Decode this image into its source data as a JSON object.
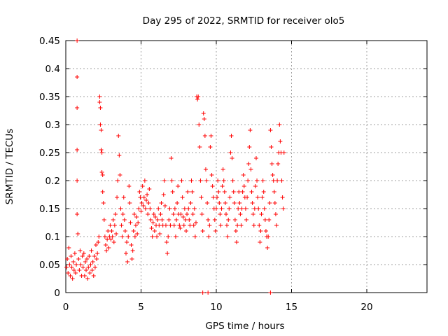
{
  "chart_data": {
    "type": "scatter",
    "title": "Day 295 of 2022, SRMTID for receiver olo5",
    "xlabel": "GPS time / hours",
    "ylabel": "SRMTID / TECUs",
    "xlim": [
      0,
      24
    ],
    "ylim": [
      0,
      0.45
    ],
    "x_ticks": [
      0,
      5,
      10,
      15,
      20
    ],
    "y_ticks": [
      0,
      0.05,
      0.1,
      0.15,
      0.2,
      0.25,
      0.3,
      0.35,
      0.4,
      0.45
    ],
    "x_tick_labels": [
      "0",
      "5",
      "10",
      "15",
      "20"
    ],
    "y_tick_labels": [
      "0",
      "0.05",
      "0.1",
      "0.15",
      "0.2",
      "0.25",
      "0.3",
      "0.35",
      "0.4",
      "0.45"
    ],
    "grid": true,
    "marker": "+",
    "color": "#ff0000",
    "series": [
      {
        "name": "SRMTID",
        "points": [
          [
            0.05,
            0.045
          ],
          [
            0.1,
            0.06
          ],
          [
            0.15,
            0.035
          ],
          [
            0.2,
            0.08
          ],
          [
            0.25,
            0.05
          ],
          [
            0.3,
            0.03
          ],
          [
            0.35,
            0.065
          ],
          [
            0.4,
            0.045
          ],
          [
            0.45,
            0.025
          ],
          [
            0.5,
            0.055
          ],
          [
            0.55,
            0.04
          ],
          [
            0.6,
            0.07
          ],
          [
            0.65,
            0.035
          ],
          [
            0.7,
            0.05
          ],
          [
            0.75,
            0.45
          ],
          [
            0.75,
            0.385
          ],
          [
            0.75,
            0.33
          ],
          [
            0.75,
            0.255
          ],
          [
            0.75,
            0.2
          ],
          [
            0.75,
            0.14
          ],
          [
            0.8,
            0.105
          ],
          [
            0.85,
            0.06
          ],
          [
            0.9,
            0.04
          ],
          [
            0.95,
            0.075
          ],
          [
            1.0,
            0.05
          ],
          [
            1.05,
            0.03
          ],
          [
            1.1,
            0.065
          ],
          [
            1.15,
            0.045
          ],
          [
            1.2,
            0.07
          ],
          [
            1.25,
            0.03
          ],
          [
            1.3,
            0.055
          ],
          [
            1.35,
            0.04
          ],
          [
            1.4,
            0.06
          ],
          [
            1.45,
            0.025
          ],
          [
            1.5,
            0.045
          ],
          [
            1.55,
            0.065
          ],
          [
            1.6,
            0.035
          ],
          [
            1.65,
            0.05
          ],
          [
            1.7,
            0.075
          ],
          [
            1.75,
            0.04
          ],
          [
            1.8,
            0.055
          ],
          [
            1.85,
            0.03
          ],
          [
            1.9,
            0.065
          ],
          [
            1.95,
            0.045
          ],
          [
            2.0,
            0.085
          ],
          [
            2.05,
            0.06
          ],
          [
            2.1,
            0.07
          ],
          [
            2.15,
            0.09
          ],
          [
            2.2,
            0.1
          ],
          [
            2.25,
            0.35
          ],
          [
            2.25,
            0.34
          ],
          [
            2.3,
            0.33
          ],
          [
            2.3,
            0.3
          ],
          [
            2.35,
            0.29
          ],
          [
            2.35,
            0.255
          ],
          [
            2.4,
            0.25
          ],
          [
            2.4,
            0.215
          ],
          [
            2.45,
            0.21
          ],
          [
            2.45,
            0.18
          ],
          [
            2.5,
            0.16
          ],
          [
            2.55,
            0.13
          ],
          [
            2.6,
            0.1
          ],
          [
            2.65,
            0.085
          ],
          [
            2.7,
            0.075
          ],
          [
            2.75,
            0.095
          ],
          [
            2.8,
            0.11
          ],
          [
            2.85,
            0.08
          ],
          [
            2.9,
            0.1
          ],
          [
            2.95,
            0.12
          ],
          [
            3.0,
            0.095
          ],
          [
            3.05,
            0.11
          ],
          [
            3.1,
            0.1
          ],
          [
            3.15,
            0.13
          ],
          [
            3.2,
            0.09
          ],
          [
            3.25,
            0.12
          ],
          [
            3.3,
            0.14
          ],
          [
            3.35,
            0.105
          ],
          [
            3.4,
            0.17
          ],
          [
            3.45,
            0.2
          ],
          [
            3.5,
            0.28
          ],
          [
            3.55,
            0.245
          ],
          [
            3.6,
            0.21
          ],
          [
            3.65,
            0.15
          ],
          [
            3.7,
            0.12
          ],
          [
            3.75,
            0.1
          ],
          [
            3.8,
            0.14
          ],
          [
            3.85,
            0.17
          ],
          [
            3.9,
            0.13
          ],
          [
            3.95,
            0.11
          ],
          [
            4.0,
            0.07
          ],
          [
            4.05,
            0.09
          ],
          [
            4.1,
            0.055
          ],
          [
            4.15,
            0.1
          ],
          [
            4.2,
            0.19
          ],
          [
            4.25,
            0.16
          ],
          [
            4.3,
            0.125
          ],
          [
            4.35,
            0.085
          ],
          [
            4.4,
            0.06
          ],
          [
            4.45,
            0.075
          ],
          [
            4.5,
            0.11
          ],
          [
            4.55,
            0.14
          ],
          [
            4.6,
            0.1
          ],
          [
            4.65,
            0.12
          ],
          [
            4.7,
            0.135
          ],
          [
            4.75,
            0.105
          ],
          [
            4.8,
            0.125
          ],
          [
            4.85,
            0.15
          ],
          [
            4.9,
            0.18
          ],
          [
            4.95,
            0.17
          ],
          [
            5.0,
            0.145
          ],
          [
            5.05,
            0.16
          ],
          [
            5.1,
            0.19
          ],
          [
            5.15,
            0.155
          ],
          [
            5.2,
            0.17
          ],
          [
            5.25,
            0.2
          ],
          [
            5.3,
            0.15
          ],
          [
            5.35,
            0.165
          ],
          [
            5.4,
            0.175
          ],
          [
            5.45,
            0.14
          ],
          [
            5.5,
            0.16
          ],
          [
            5.55,
            0.185
          ],
          [
            5.6,
            0.15
          ],
          [
            5.65,
            0.13
          ],
          [
            5.7,
            0.115
          ],
          [
            5.75,
            0.1
          ],
          [
            5.8,
            0.125
          ],
          [
            5.85,
            0.14
          ],
          [
            5.9,
            0.11
          ],
          [
            5.95,
            0.135
          ],
          [
            6.0,
            0.12
          ],
          [
            6.05,
            0.1
          ],
          [
            6.1,
            0.13
          ],
          [
            6.15,
            0.15
          ],
          [
            6.2,
            0.12
          ],
          [
            6.25,
            0.105
          ],
          [
            6.3,
            0.14
          ],
          [
            6.35,
            0.16
          ],
          [
            6.4,
            0.13
          ],
          [
            6.45,
            0.12
          ],
          [
            6.5,
            0.175
          ],
          [
            6.55,
            0.2
          ],
          [
            6.6,
            0.155
          ],
          [
            6.65,
            0.12
          ],
          [
            6.7,
            0.09
          ],
          [
            6.75,
            0.07
          ],
          [
            6.8,
            0.1
          ],
          [
            6.85,
            0.13
          ],
          [
            6.9,
            0.15
          ],
          [
            6.95,
            0.12
          ],
          [
            7.0,
            0.24
          ],
          [
            7.05,
            0.2
          ],
          [
            7.1,
            0.18
          ],
          [
            7.15,
            0.14
          ],
          [
            7.2,
            0.12
          ],
          [
            7.25,
            0.15
          ],
          [
            7.3,
            0.1
          ],
          [
            7.35,
            0.13
          ],
          [
            7.4,
            0.16
          ],
          [
            7.45,
            0.19
          ],
          [
            7.5,
            0.14
          ],
          [
            7.55,
            0.12
          ],
          [
            7.6,
            0.115
          ],
          [
            7.65,
            0.14
          ],
          [
            7.7,
            0.2
          ],
          [
            7.75,
            0.17
          ],
          [
            7.8,
            0.135
          ],
          [
            7.85,
            0.12
          ],
          [
            7.9,
            0.15
          ],
          [
            7.95,
            0.13
          ],
          [
            8.0,
            0.11
          ],
          [
            8.05,
            0.14
          ],
          [
            8.1,
            0.18
          ],
          [
            8.15,
            0.15
          ],
          [
            8.2,
            0.13
          ],
          [
            8.25,
            0.12
          ],
          [
            8.3,
            0.16
          ],
          [
            8.35,
            0.2
          ],
          [
            8.4,
            0.18
          ],
          [
            8.45,
            0.14
          ],
          [
            8.5,
            0.12
          ],
          [
            8.55,
            0.15
          ],
          [
            8.6,
            0.1
          ],
          [
            8.65,
            0.125
          ],
          [
            8.7,
            0.35
          ],
          [
            8.75,
            0.345
          ],
          [
            8.8,
            0.35
          ],
          [
            8.85,
            0.3
          ],
          [
            8.9,
            0.26
          ],
          [
            8.95,
            0.2
          ],
          [
            9.0,
            0.17
          ],
          [
            9.05,
            0.14
          ],
          [
            9.1,
            0.11
          ],
          [
            9.1,
            0.0
          ],
          [
            9.15,
            0.32
          ],
          [
            9.2,
            0.31
          ],
          [
            9.25,
            0.28
          ],
          [
            9.3,
            0.22
          ],
          [
            9.35,
            0.2
          ],
          [
            9.4,
            0.16
          ],
          [
            9.45,
            0.0
          ],
          [
            9.45,
            0.13
          ],
          [
            9.5,
            0.1
          ],
          [
            9.55,
            0.12
          ],
          [
            9.6,
            0.26
          ],
          [
            9.65,
            0.28
          ],
          [
            9.7,
            0.21
          ],
          [
            9.75,
            0.19
          ],
          [
            9.8,
            0.17
          ],
          [
            9.85,
            0.15
          ],
          [
            9.9,
            0.13
          ],
          [
            9.95,
            0.11
          ],
          [
            10.0,
            0.15
          ],
          [
            10.05,
            0.17
          ],
          [
            10.1,
            0.2
          ],
          [
            10.15,
            0.18
          ],
          [
            10.2,
            0.16
          ],
          [
            10.25,
            0.14
          ],
          [
            10.3,
            0.12
          ],
          [
            10.35,
            0.15
          ],
          [
            10.4,
            0.19
          ],
          [
            10.45,
            0.22
          ],
          [
            10.5,
            0.2
          ],
          [
            10.55,
            0.18
          ],
          [
            10.6,
            0.16
          ],
          [
            10.65,
            0.14
          ],
          [
            10.7,
            0.12
          ],
          [
            10.75,
            0.1
          ],
          [
            10.8,
            0.13
          ],
          [
            10.85,
            0.15
          ],
          [
            10.9,
            0.17
          ],
          [
            10.95,
            0.25
          ],
          [
            11.0,
            0.28
          ],
          [
            11.05,
            0.24
          ],
          [
            11.1,
            0.2
          ],
          [
            11.15,
            0.18
          ],
          [
            11.2,
            0.16
          ],
          [
            11.25,
            0.13
          ],
          [
            11.3,
            0.11
          ],
          [
            11.35,
            0.09
          ],
          [
            11.4,
            0.12
          ],
          [
            11.45,
            0.15
          ],
          [
            11.5,
            0.18
          ],
          [
            11.55,
            0.16
          ],
          [
            11.6,
            0.14
          ],
          [
            11.65,
            0.12
          ],
          [
            11.7,
            0.15
          ],
          [
            11.75,
            0.18
          ],
          [
            11.8,
            0.21
          ],
          [
            11.85,
            0.19
          ],
          [
            11.9,
            0.17
          ],
          [
            11.95,
            0.15
          ],
          [
            12.0,
            0.13
          ],
          [
            12.05,
            0.17
          ],
          [
            12.1,
            0.2
          ],
          [
            12.15,
            0.23
          ],
          [
            12.2,
            0.26
          ],
          [
            12.25,
            0.29
          ],
          [
            12.3,
            0.22
          ],
          [
            12.35,
            0.18
          ],
          [
            12.4,
            0.16
          ],
          [
            12.45,
            0.14
          ],
          [
            12.5,
            0.12
          ],
          [
            12.55,
            0.15
          ],
          [
            12.6,
            0.19
          ],
          [
            12.65,
            0.24
          ],
          [
            12.7,
            0.2
          ],
          [
            12.75,
            0.17
          ],
          [
            12.8,
            0.15
          ],
          [
            12.85,
            0.12
          ],
          [
            12.9,
            0.09
          ],
          [
            12.95,
            0.11
          ],
          [
            13.0,
            0.14
          ],
          [
            13.05,
            0.17
          ],
          [
            13.1,
            0.2
          ],
          [
            13.15,
            0.18
          ],
          [
            13.2,
            0.15
          ],
          [
            13.25,
            0.13
          ],
          [
            13.3,
            0.11
          ],
          [
            13.35,
            0.1
          ],
          [
            13.4,
            0.08
          ],
          [
            13.45,
            0.1
          ],
          [
            13.5,
            0.13
          ],
          [
            13.55,
            0.16
          ],
          [
            13.6,
            0.0
          ],
          [
            13.6,
            0.29
          ],
          [
            13.65,
            0.26
          ],
          [
            13.7,
            0.23
          ],
          [
            13.75,
            0.21
          ],
          [
            13.8,
            0.2
          ],
          [
            13.85,
            0.18
          ],
          [
            13.9,
            0.16
          ],
          [
            13.95,
            0.14
          ],
          [
            14.0,
            0.12
          ],
          [
            14.05,
            0.2
          ],
          [
            14.1,
            0.23
          ],
          [
            14.15,
            0.25
          ],
          [
            14.2,
            0.3
          ],
          [
            14.25,
            0.27
          ],
          [
            14.3,
            0.25
          ],
          [
            14.35,
            0.2
          ],
          [
            14.4,
            0.17
          ],
          [
            14.45,
            0.15
          ],
          [
            14.5,
            0.25
          ]
        ]
      }
    ]
  }
}
